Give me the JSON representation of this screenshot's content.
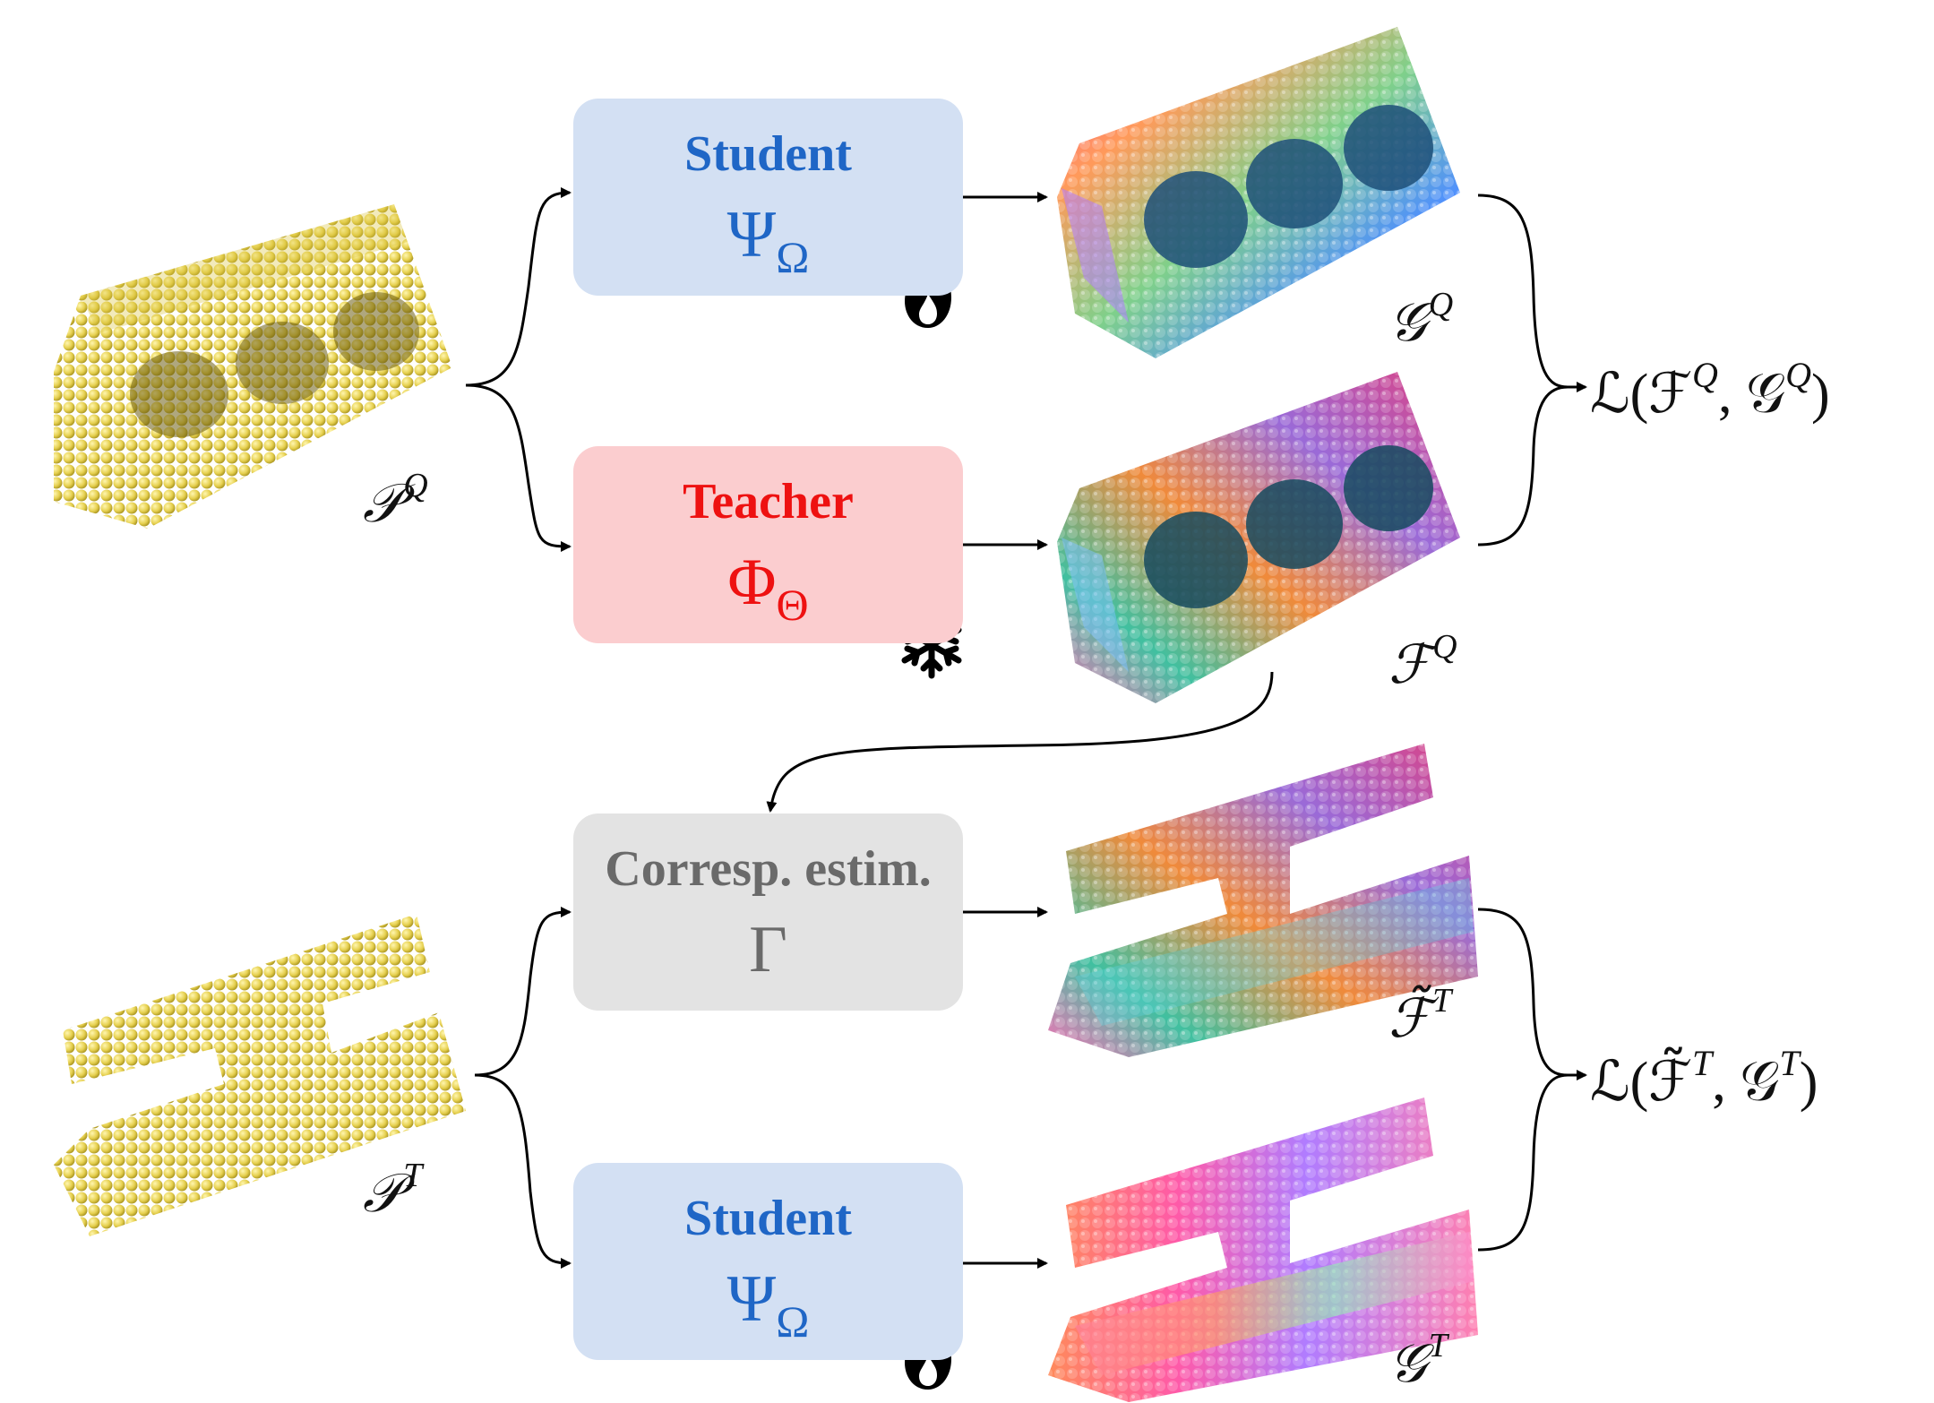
{
  "boxes": {
    "student_query": {
      "name": "Student",
      "symbol": "Ψ",
      "subscript": "Ω"
    },
    "teacher": {
      "name": "Teacher",
      "symbol": "Φ",
      "subscript": "Θ"
    },
    "corresp": {
      "name": "Corresp. estim.",
      "symbol": "Γ"
    },
    "student_target": {
      "name": "Student",
      "symbol": "Ψ",
      "subscript": "Ω"
    }
  },
  "labels": {
    "pq": {
      "base": "𝒫",
      "sup": "Q"
    },
    "gq": {
      "base": "𝒢",
      "sup": "Q"
    },
    "fq": {
      "base": "ℱ",
      "sup": "Q"
    },
    "ft": {
      "base": "ℱ̃",
      "sup": "T"
    },
    "pt": {
      "base": "𝒫",
      "sup": "T"
    },
    "gt": {
      "base": "𝒢",
      "sup": "T"
    }
  },
  "losses": {
    "query": {
      "prefix": "ℒ(ℱ",
      "sup1": "Q",
      "mid": ", 𝒢",
      "sup2": "Q",
      "suffix": ")"
    },
    "target": {
      "prefix": "ℒ(ℱ̃",
      "sup1": "T",
      "mid": ", 𝒢",
      "sup2": "T",
      "suffix": ")"
    }
  },
  "icons": {
    "student_query_badge": "flame-icon",
    "teacher_badge": "snowflake-icon",
    "student_target_badge": "flame-icon"
  },
  "colors": {
    "student_fill": "#d3e0f3",
    "student_text": "#1f66c6",
    "teacher_fill": "#fbcdcf",
    "teacher_text": "#ee1111",
    "corresp_fill": "#e3e3e3",
    "corresp_text": "#6a6a6a",
    "point_yellow": "#e8d55a"
  }
}
